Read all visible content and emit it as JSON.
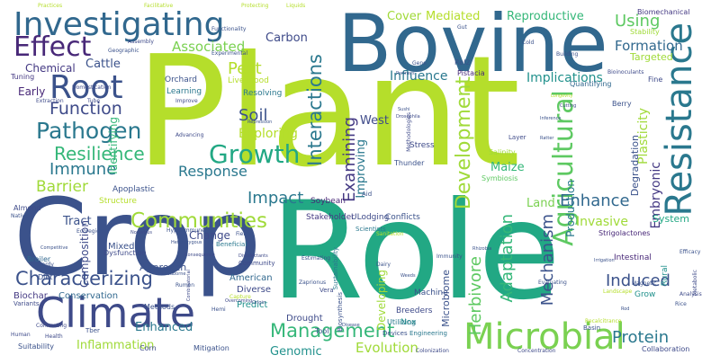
{
  "cloud": {
    "words": [
      {
        "text": "Plant",
        "color": "#b5de2b"
      },
      {
        "text": "Role",
        "color": "#22a884"
      },
      {
        "text": "Crop",
        "color": "#3b528b"
      },
      {
        "text": "Bovine",
        "color": "#31688e"
      },
      {
        "text": "Climate",
        "color": "#3e4a89"
      },
      {
        "text": "Resistance",
        "color": "#2a788e"
      },
      {
        "text": "Microbial",
        "color": "#7ad151"
      },
      {
        "text": "Investigating",
        "color": "#31688e"
      },
      {
        "text": "Root",
        "color": "#3b528b"
      },
      {
        "text": "Effect",
        "color": "#482878"
      },
      {
        "text": "Agricultural",
        "color": "#5ec962"
      },
      {
        "text": "Growth",
        "color": "#22a884"
      },
      {
        "text": "Pathogen",
        "color": "#2a788e"
      },
      {
        "text": "Communities",
        "color": "#a0da39"
      },
      {
        "text": "Management",
        "color": "#35b779"
      },
      {
        "text": "Characterizing",
        "color": "#3b528b"
      },
      {
        "text": "Interactions",
        "color": "#2a788e"
      },
      {
        "text": "Development",
        "color": "#a0da39"
      },
      {
        "text": "Herbivore",
        "color": "#5ec962"
      },
      {
        "text": "Adaptation",
        "color": "#35b779"
      },
      {
        "text": "Mechanism",
        "color": "#3b528b"
      },
      {
        "text": "Examining",
        "color": "#443983"
      },
      {
        "text": "Function",
        "color": "#3e4a89"
      },
      {
        "text": "Resilience",
        "color": "#35b779"
      },
      {
        "text": "Immune",
        "color": "#2a788e"
      },
      {
        "text": "Barrier",
        "color": "#a0da39"
      },
      {
        "text": "Enhance",
        "color": "#31688e"
      },
      {
        "text": "Impact",
        "color": "#2a788e"
      },
      {
        "text": "Induced",
        "color": "#3b528b"
      },
      {
        "text": "Protein",
        "color": "#2a788e"
      },
      {
        "text": "Soil",
        "color": "#3b528b"
      },
      {
        "text": "Pest",
        "color": "#b5de2b"
      },
      {
        "text": "Using",
        "color": "#5ec962"
      },
      {
        "text": "Formation",
        "color": "#31688e"
      },
      {
        "text": "Associated",
        "color": "#7ad151"
      },
      {
        "text": "Response",
        "color": "#2a788e"
      },
      {
        "text": "Exploring",
        "color": "#b5de2b"
      },
      {
        "text": "Embryonic",
        "color": "#443983"
      },
      {
        "text": "Plasticity",
        "color": "#a0da39"
      },
      {
        "text": "Evolution",
        "color": "#a0da39"
      },
      {
        "text": "Genomic",
        "color": "#21918c"
      },
      {
        "text": "Inflammation",
        "color": "#a0da39"
      },
      {
        "text": "Enhanced",
        "color": "#2a788e"
      },
      {
        "text": "Invasive",
        "color": "#a0da39"
      },
      {
        "text": "Implications",
        "color": "#21918c"
      },
      {
        "text": "Influence",
        "color": "#2a788e"
      },
      {
        "text": "Carbon",
        "color": "#3e4a89"
      },
      {
        "text": "Cover",
        "color": "#a0da39"
      },
      {
        "text": "Reproductive",
        "color": "#35b779"
      },
      {
        "text": "Mediated",
        "color": "#b5de2b"
      },
      {
        "text": "Cattle",
        "color": "#3b528b"
      },
      {
        "text": "Chemical",
        "color": "#443983"
      },
      {
        "text": "Tract",
        "color": "#3b528b"
      },
      {
        "text": "Change",
        "color": "#3e4a89"
      },
      {
        "text": "West",
        "color": "#3e4a89"
      },
      {
        "text": "Maize",
        "color": "#35b779"
      },
      {
        "text": "Land",
        "color": "#7ad151"
      },
      {
        "text": "Production",
        "color": "#2a788e"
      },
      {
        "text": "Improving",
        "color": "#2a788e"
      },
      {
        "text": "Identifying",
        "color": "#35b779"
      },
      {
        "text": "Composition",
        "color": "#3e4a89"
      },
      {
        "text": "Developing",
        "color": "#a0da39"
      },
      {
        "text": "Degradation",
        "color": "#3b528b"
      },
      {
        "text": "Early",
        "color": "#482878"
      },
      {
        "text": "Targeted",
        "color": "#a0da39"
      },
      {
        "text": "System",
        "color": "#22a884"
      },
      {
        "text": "Microbiome",
        "color": "#3b528b"
      },
      {
        "text": "Approach",
        "color": "#3b528b"
      },
      {
        "text": "Conservation",
        "color": "#31688e"
      },
      {
        "text": "Mixed",
        "color": "#3b528b"
      },
      {
        "text": "Drought",
        "color": "#3e4a89"
      },
      {
        "text": "Biochar",
        "color": "#443983"
      },
      {
        "text": "Predict",
        "color": "#21918c"
      },
      {
        "text": "Diverse",
        "color": "#3e4a89"
      },
      {
        "text": "American",
        "color": "#31688e"
      },
      {
        "text": "Breeders",
        "color": "#3e4a89"
      },
      {
        "text": "Nox",
        "color": "#21918c"
      },
      {
        "text": "Machine",
        "color": "#3b528b"
      },
      {
        "text": "Grow",
        "color": "#21918c"
      },
      {
        "text": "Rural",
        "color": "#21918c"
      },
      {
        "text": "Intestinal",
        "color": "#482878"
      },
      {
        "text": "Orchard",
        "color": "#3b528b"
      },
      {
        "text": "Learning",
        "color": "#2a788e"
      },
      {
        "text": "Livelihood",
        "color": "#b5de2b"
      },
      {
        "text": "Resolving",
        "color": "#2a788e"
      },
      {
        "text": "Apoplastic",
        "color": "#3b528b"
      },
      {
        "text": "Structure",
        "color": "#b5de2b"
      },
      {
        "text": "Stakeholder",
        "color": "#443983"
      },
      {
        "text": "ULodging",
        "color": "#3e4a89"
      },
      {
        "text": "Conflicts",
        "color": "#3b528b"
      },
      {
        "text": "Soybean",
        "color": "#482878"
      },
      {
        "text": "Stress",
        "color": "#3e4a89"
      },
      {
        "text": "Thunder",
        "color": "#3b528b"
      },
      {
        "text": "Symbiosis",
        "color": "#5ec962"
      },
      {
        "text": "Salinity",
        "color": "#a0da39"
      },
      {
        "text": "Strigolactones",
        "color": "#482878"
      },
      {
        "text": "Fine",
        "color": "#3e4a89"
      },
      {
        "text": "Berry",
        "color": "#3b528b"
      },
      {
        "text": "Quantifying",
        "color": "#31688e"
      },
      {
        "text": "Rel2",
        "color": "#3b528b"
      },
      {
        "text": "Pistacia",
        "color": "#482878"
      },
      {
        "text": "Biomechanical",
        "color": "#443983"
      },
      {
        "text": "Stability",
        "color": "#a0da39"
      },
      {
        "text": "Almond",
        "color": "#3e4a89"
      },
      {
        "text": "Broiler",
        "color": "#31688e"
      },
      {
        "text": "Tuning",
        "color": "#443983"
      },
      {
        "text": "Diet",
        "color": "#3b528b"
      },
      {
        "text": "Methods",
        "color": "#3b528b"
      },
      {
        "text": "Dysfunction",
        "color": "#3e4a89"
      },
      {
        "text": "Tool",
        "color": "#3b528b"
      },
      {
        "text": "Utilizing",
        "color": "#2a788e"
      },
      {
        "text": "Aid",
        "color": "#3b528b"
      },
      {
        "text": "Scientists",
        "color": "#2a788e"
      },
      {
        "text": "Vera",
        "color": "#3e4a89"
      },
      {
        "text": "Devices",
        "color": "#3b528b"
      },
      {
        "text": "Corn",
        "color": "#3e4a89"
      },
      {
        "text": "Mitigation",
        "color": "#3b528b"
      },
      {
        "text": "Collaboration",
        "color": "#3e4a89"
      },
      {
        "text": "Suitability",
        "color": "#3b528b"
      },
      {
        "text": "Tber",
        "color": "#3b528b"
      },
      {
        "text": "Variants",
        "color": "#3e4a89"
      },
      {
        "text": "Basin",
        "color": "#3b528b"
      },
      {
        "text": "Engineering",
        "color": "#2a788e"
      },
      {
        "text": "Biosynthesis",
        "color": "#3b528b"
      },
      {
        "text": "Sustainability",
        "color": "#2a788e"
      },
      {
        "text": "Evaluating",
        "color": "#3b528b"
      },
      {
        "text": "Beneficial",
        "color": "#2a788e"
      },
      {
        "text": "Community",
        "color": "#3e4a89"
      },
      {
        "text": "Efficacy",
        "color": "#3b528b"
      },
      {
        "text": "Magnetic",
        "color": "#3b528b"
      },
      {
        "text": "Geographic",
        "color": "#3b528b"
      },
      {
        "text": "Assembly",
        "color": "#3e4a89"
      },
      {
        "text": "Experimental",
        "color": "#3b528b"
      },
      {
        "text": "Functionality",
        "color": "#3b528b"
      },
      {
        "text": "Building",
        "color": "#3b528b"
      },
      {
        "text": "Bioinoculants",
        "color": "#3e4a89"
      },
      {
        "text": "Improve",
        "color": "#3e4a89"
      },
      {
        "text": "Repression",
        "color": "#3b528b"
      },
      {
        "text": "Methodologies",
        "color": "#3e4a89"
      },
      {
        "text": "Drosophila",
        "color": "#3e4a89"
      },
      {
        "text": "Ecoregion",
        "color": "#3b528b"
      },
      {
        "text": "Foodborne",
        "color": "#3b528b"
      },
      {
        "text": "Combinatorial",
        "color": "#3e4a89"
      },
      {
        "text": "Hyperimmune",
        "color": "#3b528b"
      },
      {
        "text": "Practices",
        "color": "#b5de2b"
      },
      {
        "text": "Facilitative",
        "color": "#b5de2b"
      },
      {
        "text": "Liquids",
        "color": "#b5de2b"
      },
      {
        "text": "Protecting",
        "color": "#b5de2b"
      },
      {
        "text": "Gut",
        "color": "#3b528b"
      },
      {
        "text": "Cold",
        "color": "#3b528b"
      },
      {
        "text": "Gene",
        "color": "#3b528b"
      },
      {
        "text": "Extraction",
        "color": "#3e4a89"
      },
      {
        "text": "Tube",
        "color": "#3e4a89"
      },
      {
        "text": "Domestication",
        "color": "#3e4a89"
      },
      {
        "text": "Partners",
        "color": "#3b528b"
      },
      {
        "text": "Sushi",
        "color": "#3b528b"
      },
      {
        "text": "Fields",
        "color": "#3b528b"
      },
      {
        "text": "Native",
        "color": "#3b528b"
      },
      {
        "text": "Norovirus",
        "color": "#3e4a89"
      },
      {
        "text": "Consequence",
        "color": "#3e4a89"
      },
      {
        "text": "Disinfectants",
        "color": "#3e4a89"
      },
      {
        "text": "Sanitation",
        "color": "#b5de2b"
      },
      {
        "text": "Estimating",
        "color": "#3b528b"
      },
      {
        "text": "Zaprionus",
        "color": "#3b528b"
      },
      {
        "text": "Dairy",
        "color": "#3b528b"
      },
      {
        "text": "Immunity",
        "color": "#3b528b"
      },
      {
        "text": "Weeds",
        "color": "#3b528b"
      },
      {
        "text": "Rhizobia",
        "color": "#3b528b"
      },
      {
        "text": "Competitive",
        "color": "#3b528b"
      },
      {
        "text": "Hardy",
        "color": "#3b528b"
      },
      {
        "text": "Human",
        "color": "#3e4a89"
      },
      {
        "text": "Connecting",
        "color": "#3e4a89"
      },
      {
        "text": "Health",
        "color": "#3e4a89"
      },
      {
        "text": "Colonization",
        "color": "#3e4a89"
      },
      {
        "text": "Concentration",
        "color": "#3e4a89"
      },
      {
        "text": "Analysis",
        "color": "#3e4a89"
      },
      {
        "text": "Metabolic",
        "color": "#3e4a89"
      },
      {
        "text": "Rice",
        "color": "#3b528b"
      },
      {
        "text": "Irrigation",
        "color": "#3b528b"
      },
      {
        "text": "Capture",
        "color": "#b5de2b"
      },
      {
        "text": "Heterozygous",
        "color": "#3b528b"
      },
      {
        "text": "Landscape",
        "color": "#b5de2b"
      },
      {
        "text": "Overcoming",
        "color": "#3e4a89"
      },
      {
        "text": "Hemi",
        "color": "#3b528b"
      },
      {
        "text": "Origin",
        "color": "#3b528b"
      },
      {
        "text": "Rumen",
        "color": "#3b528b"
      },
      {
        "text": "Advancing",
        "color": "#3e4a89"
      },
      {
        "text": "Recalcitrance",
        "color": "#b5de2b"
      },
      {
        "text": "Disease",
        "color": "#3b528b"
      },
      {
        "text": "Rod",
        "color": "#3b528b"
      },
      {
        "text": "Layer",
        "color": "#3e4a89"
      },
      {
        "text": "Ratter",
        "color": "#3b528b"
      },
      {
        "text": "Inference",
        "color": "#3b528b"
      },
      {
        "text": "Longevity",
        "color": "#b5de2b"
      },
      {
        "text": "Cutting",
        "color": "#3e4a89"
      }
    ]
  }
}
